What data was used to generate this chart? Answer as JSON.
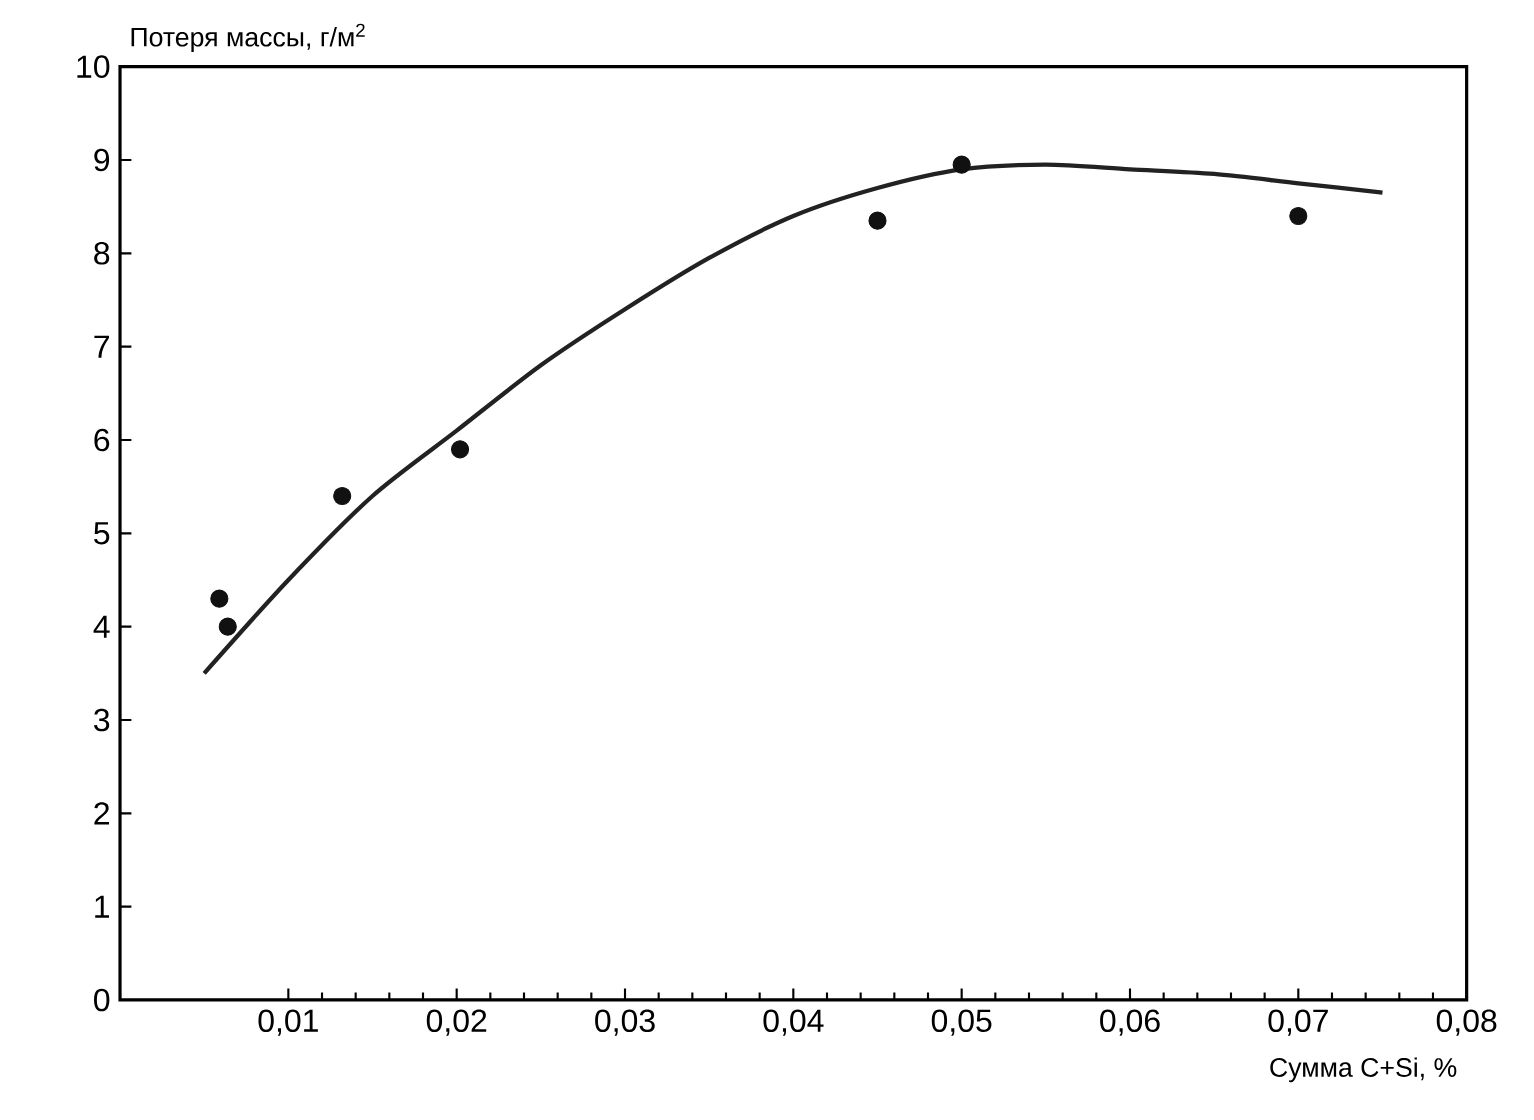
{
  "chart_data": {
    "type": "scatter",
    "ylabel": "Потеря массы, г/м$^{2}$",
    "xlabel": "Сумма С+Si, %",
    "xlim": [
      0,
      0.08
    ],
    "ylim": [
      0,
      10
    ],
    "xticks": [
      {
        "value": 0.01,
        "label": "0,01"
      },
      {
        "value": 0.02,
        "label": "0,02"
      },
      {
        "value": 0.03,
        "label": "0,03"
      },
      {
        "value": 0.04,
        "label": "0,04"
      },
      {
        "value": 0.05,
        "label": "0,05"
      },
      {
        "value": 0.06,
        "label": "0,06"
      },
      {
        "value": 0.07,
        "label": "0,07"
      },
      {
        "value": 0.08,
        "label": "0,08"
      }
    ],
    "yticks": [
      0,
      1,
      2,
      3,
      4,
      5,
      6,
      7,
      8,
      9,
      10
    ],
    "grid": false,
    "series": [
      {
        "marker": "circle",
        "color": "#111111",
        "x": [
          0.0059,
          0.0064,
          0.0132,
          0.0202,
          0.045,
          0.05,
          0.07
        ],
        "values": [
          4.3,
          4.0,
          5.4,
          5.9,
          8.35,
          8.95,
          8.4
        ]
      },
      {
        "type": "line",
        "marker": "none",
        "color": "#222222",
        "line_style": "solid",
        "x": [
          0.005,
          0.01,
          0.015,
          0.02,
          0.025,
          0.03,
          0.035,
          0.04,
          0.045,
          0.05,
          0.055,
          0.06,
          0.065,
          0.07,
          0.075
        ],
        "values": [
          3.5,
          4.5,
          5.4,
          6.1,
          6.8,
          7.4,
          7.95,
          8.4,
          8.7,
          8.9,
          8.95,
          8.9,
          8.85,
          8.75,
          8.65
        ]
      }
    ]
  }
}
